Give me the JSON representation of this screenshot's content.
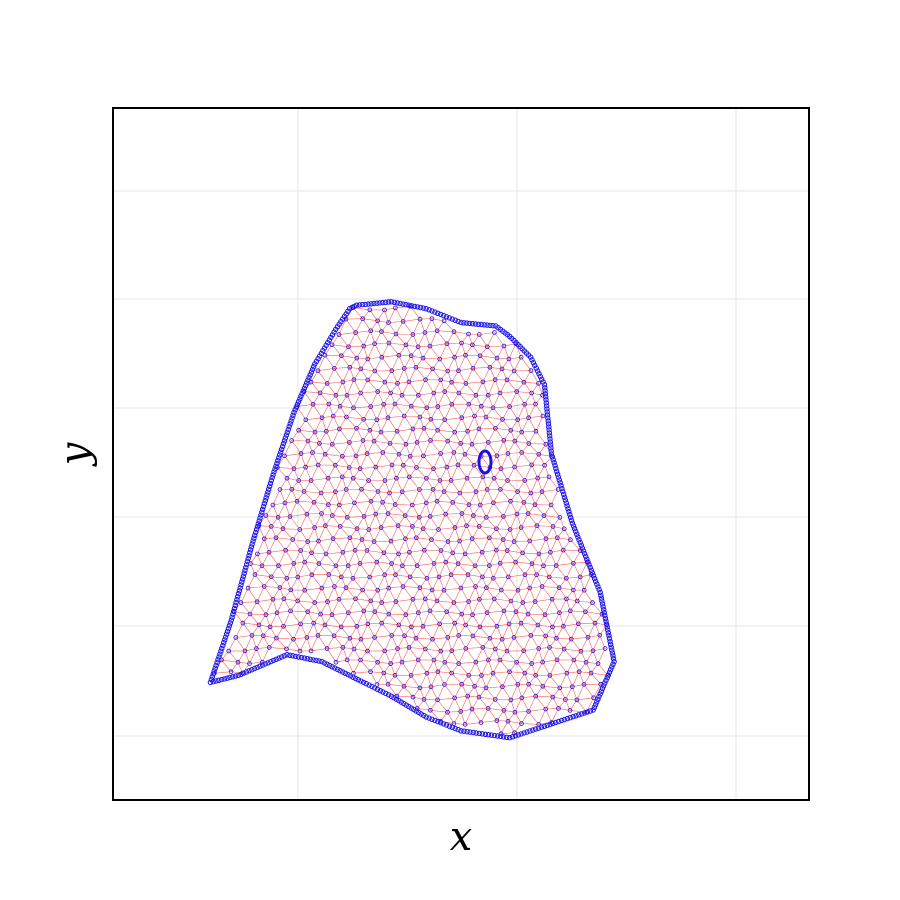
{
  "chart_data": {
    "type": "scatter",
    "title": "",
    "xlabel": "x",
    "ylabel": "y",
    "x_ticks_labeled": false,
    "y_ticks_labeled": false,
    "grid": true,
    "legend": "none",
    "xlim": [
      0,
      1
    ],
    "ylim": [
      0,
      1
    ],
    "colors": {
      "points": "#1a10e8",
      "edges": "#ff2a2a",
      "frame": "#000000",
      "grid": "#e6e6e6"
    },
    "series": [
      {
        "kind": "mesh-boundary",
        "x": [
          0.14,
          0.17,
          0.2,
          0.23,
          0.26,
          0.29,
          0.32,
          0.34,
          0.35,
          0.4,
          0.45,
          0.5,
          0.55,
          0.57,
          0.6,
          0.62,
          0.63,
          0.66,
          0.7,
          0.72,
          0.69,
          0.57,
          0.5,
          0.45,
          0.4,
          0.36,
          0.3,
          0.25,
          0.18,
          0.14
        ],
        "y": [
          0.17,
          0.26,
          0.37,
          0.47,
          0.56,
          0.63,
          0.68,
          0.71,
          0.715,
          0.72,
          0.71,
          0.69,
          0.685,
          0.67,
          0.64,
          0.6,
          0.5,
          0.4,
          0.3,
          0.2,
          0.13,
          0.09,
          0.1,
          0.12,
          0.15,
          0.17,
          0.2,
          0.21,
          0.18,
          0.17
        ]
      }
    ],
    "annotations": []
  }
}
